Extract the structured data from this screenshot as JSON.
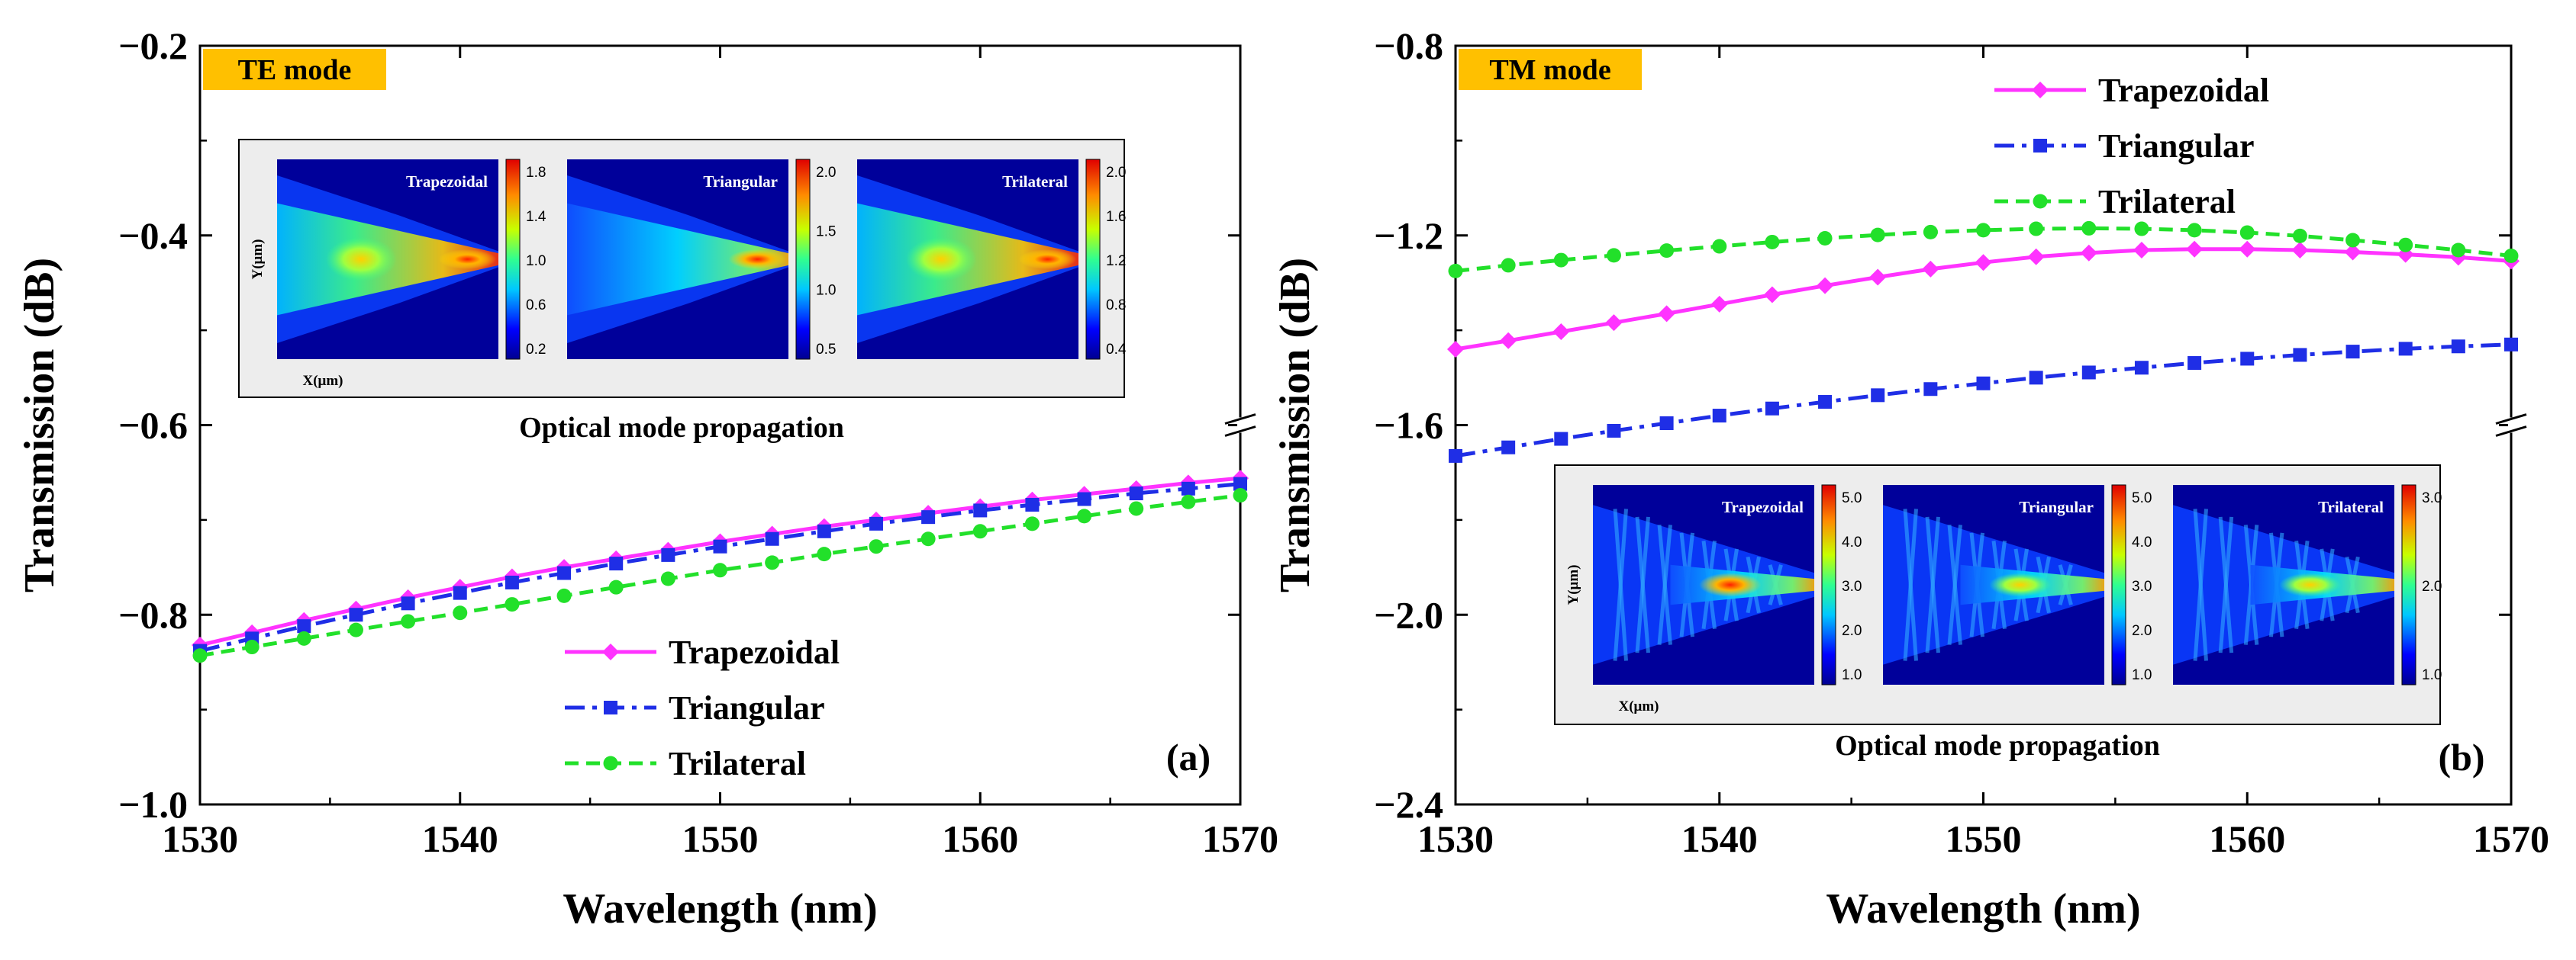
{
  "colors": {
    "trapezoidal": "#ff33ff",
    "triangular": "#1f2ee6",
    "trilateral": "#22e02a",
    "badge": "#ffc000",
    "inset_bg": "#ededed"
  },
  "chart_data": [
    {
      "type": "line",
      "panel": "(a)",
      "badge": "TE mode",
      "xlabel": "Wavelength (nm)",
      "ylabel": "Transmission (dB)",
      "xlim": [
        1530,
        1570
      ],
      "ylim_axis": [
        -1.0,
        -0.2
      ],
      "axis_break": {
        "at_tick": -0.6,
        "lower_range": [
          -1.0,
          -0.6
        ]
      },
      "xticks": [
        "1530",
        "1540",
        "1550",
        "1560",
        "1570"
      ],
      "yticks": [
        "−1.0",
        "−0.8",
        "−0.6",
        "−0.4",
        "−0.2"
      ],
      "legend_position": "lower-center",
      "x": [
        1530,
        1532,
        1534,
        1536,
        1538,
        1540,
        1542,
        1544,
        1546,
        1548,
        1550,
        1552,
        1554,
        1556,
        1558,
        1560,
        1562,
        1564,
        1566,
        1568,
        1570
      ],
      "series": [
        {
          "name": "Trapezoidal",
          "key": "trapezoidal",
          "marker": "diamond",
          "dash": "solid",
          "values": [
            -0.832,
            -0.819,
            -0.806,
            -0.794,
            -0.782,
            -0.771,
            -0.76,
            -0.75,
            -0.741,
            -0.732,
            -0.723,
            -0.715,
            -0.707,
            -0.7,
            -0.693,
            -0.686,
            -0.679,
            -0.673,
            -0.667,
            -0.661,
            -0.656
          ]
        },
        {
          "name": "Triangular",
          "key": "triangular",
          "marker": "square",
          "dash": "dashdot",
          "values": [
            -0.838,
            -0.825,
            -0.812,
            -0.8,
            -0.788,
            -0.777,
            -0.766,
            -0.756,
            -0.746,
            -0.737,
            -0.728,
            -0.72,
            -0.712,
            -0.704,
            -0.697,
            -0.69,
            -0.684,
            -0.678,
            -0.672,
            -0.667,
            -0.662
          ]
        },
        {
          "name": "Trilateral",
          "key": "trilateral",
          "marker": "circle",
          "dash": "dashed",
          "values": [
            -0.843,
            -0.834,
            -0.825,
            -0.816,
            -0.807,
            -0.798,
            -0.789,
            -0.78,
            -0.771,
            -0.762,
            -0.753,
            -0.745,
            -0.736,
            -0.728,
            -0.72,
            -0.712,
            -0.704,
            -0.696,
            -0.688,
            -0.681,
            -0.674
          ]
        }
      ],
      "inset": {
        "caption": "Optical mode propagation",
        "ylabel": "Y(μm)",
        "xlabel": "X(μm)",
        "maps": [
          {
            "label": "Trapezoidal",
            "colorbar": [
              "1.8",
              "1.4",
              "1.0",
              "0.6",
              "0.2"
            ]
          },
          {
            "label": "Triangular",
            "colorbar": [
              "2.0",
              "1.5",
              "1.0",
              "0.5"
            ]
          },
          {
            "label": "Trilateral",
            "colorbar": [
              "2.0",
              "1.6",
              "1.2",
              "0.8",
              "0.4"
            ]
          }
        ]
      }
    },
    {
      "type": "line",
      "panel": "(b)",
      "badge": "TM mode",
      "xlabel": "Wavelength (nm)",
      "ylabel": "Transmission (dB)",
      "xlim": [
        1530,
        1570
      ],
      "ylim_axis": [
        -2.4,
        -0.8
      ],
      "axis_break": {
        "at_tick": -1.6,
        "upper_range": [
          -1.6,
          -0.8
        ]
      },
      "xticks": [
        "1530",
        "1540",
        "1550",
        "1560",
        "1570"
      ],
      "yticks": [
        "−2.4",
        "−2.0",
        "−1.6",
        "−1.2",
        "−0.8"
      ],
      "legend_position": "top-left",
      "x": [
        1530,
        1532,
        1534,
        1536,
        1538,
        1540,
        1542,
        1544,
        1546,
        1548,
        1550,
        1552,
        1554,
        1556,
        1558,
        1560,
        1562,
        1564,
        1566,
        1568,
        1570
      ],
      "series": [
        {
          "name": "Trapezoidal",
          "key": "trapezoidal",
          "marker": "diamond",
          "dash": "solid",
          "values": [
            -1.44,
            -1.422,
            -1.403,
            -1.384,
            -1.365,
            -1.345,
            -1.325,
            -1.306,
            -1.288,
            -1.271,
            -1.257,
            -1.245,
            -1.237,
            -1.231,
            -1.229,
            -1.229,
            -1.231,
            -1.235,
            -1.24,
            -1.246,
            -1.254
          ]
        },
        {
          "name": "Triangular",
          "key": "triangular",
          "marker": "square",
          "dash": "dashdot",
          "values": [
            -1.665,
            -1.647,
            -1.629,
            -1.612,
            -1.596,
            -1.58,
            -1.565,
            -1.551,
            -1.537,
            -1.524,
            -1.512,
            -1.5,
            -1.489,
            -1.479,
            -1.469,
            -1.46,
            -1.452,
            -1.445,
            -1.439,
            -1.434,
            -1.43
          ]
        },
        {
          "name": "Trilateral",
          "key": "trilateral",
          "marker": "circle",
          "dash": "dashed",
          "values": [
            -1.275,
            -1.263,
            -1.252,
            -1.242,
            -1.232,
            -1.223,
            -1.214,
            -1.206,
            -1.199,
            -1.193,
            -1.189,
            -1.186,
            -1.185,
            -1.186,
            -1.189,
            -1.194,
            -1.201,
            -1.21,
            -1.22,
            -1.231,
            -1.243
          ]
        }
      ],
      "inset": {
        "caption": "Optical mode propagation",
        "ylabel": "Y(μm)",
        "xlabel": "X(μm)",
        "maps": [
          {
            "label": "Trapezoidal",
            "colorbar": [
              "5.0",
              "4.0",
              "3.0",
              "2.0",
              "1.0"
            ]
          },
          {
            "label": "Triangular",
            "colorbar": [
              "5.0",
              "4.0",
              "3.0",
              "2.0",
              "1.0"
            ]
          },
          {
            "label": "Trilateral",
            "colorbar": [
              "3.0",
              "2.0",
              "1.0"
            ]
          }
        ]
      }
    }
  ]
}
